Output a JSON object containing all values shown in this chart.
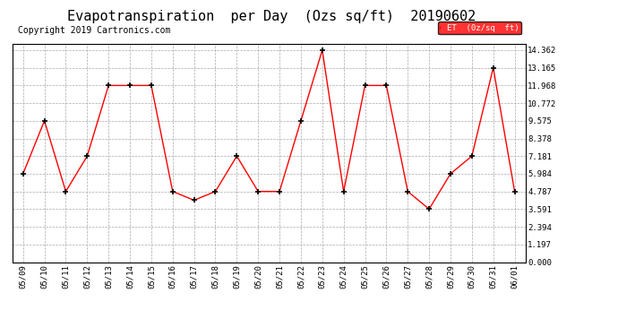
{
  "title": "Evapotranspiration  per Day  (Ozs sq/ft)  20190602",
  "copyright": "Copyright 2019 Cartronics.com",
  "legend_label": "ET  (0z/sq  ft)",
  "x_labels": [
    "05/09",
    "05/10",
    "05/11",
    "05/12",
    "05/13",
    "05/14",
    "05/15",
    "05/16",
    "05/17",
    "05/18",
    "05/19",
    "05/20",
    "05/21",
    "05/22",
    "05/23",
    "05/24",
    "05/25",
    "05/26",
    "05/27",
    "05/28",
    "05/29",
    "05/30",
    "05/31",
    "06/01"
  ],
  "y_values": [
    5.984,
    9.575,
    4.787,
    7.181,
    11.968,
    11.968,
    11.968,
    4.787,
    4.19,
    4.787,
    7.181,
    4.787,
    4.787,
    9.575,
    14.362,
    4.787,
    11.968,
    11.968,
    4.787,
    3.591,
    5.984,
    7.181,
    13.165,
    4.787
  ],
  "y_ticks": [
    0.0,
    1.197,
    2.394,
    3.591,
    4.787,
    5.984,
    7.181,
    8.378,
    9.575,
    10.772,
    11.968,
    13.165,
    14.362
  ],
  "ylim": [
    0.0,
    14.8
  ],
  "line_color": "red",
  "marker_color": "black",
  "bg_color": "#ffffff",
  "grid_color": "#aaaaaa",
  "title_fontsize": 11,
  "copyright_fontsize": 7,
  "legend_bg": "red",
  "legend_text_color": "white"
}
